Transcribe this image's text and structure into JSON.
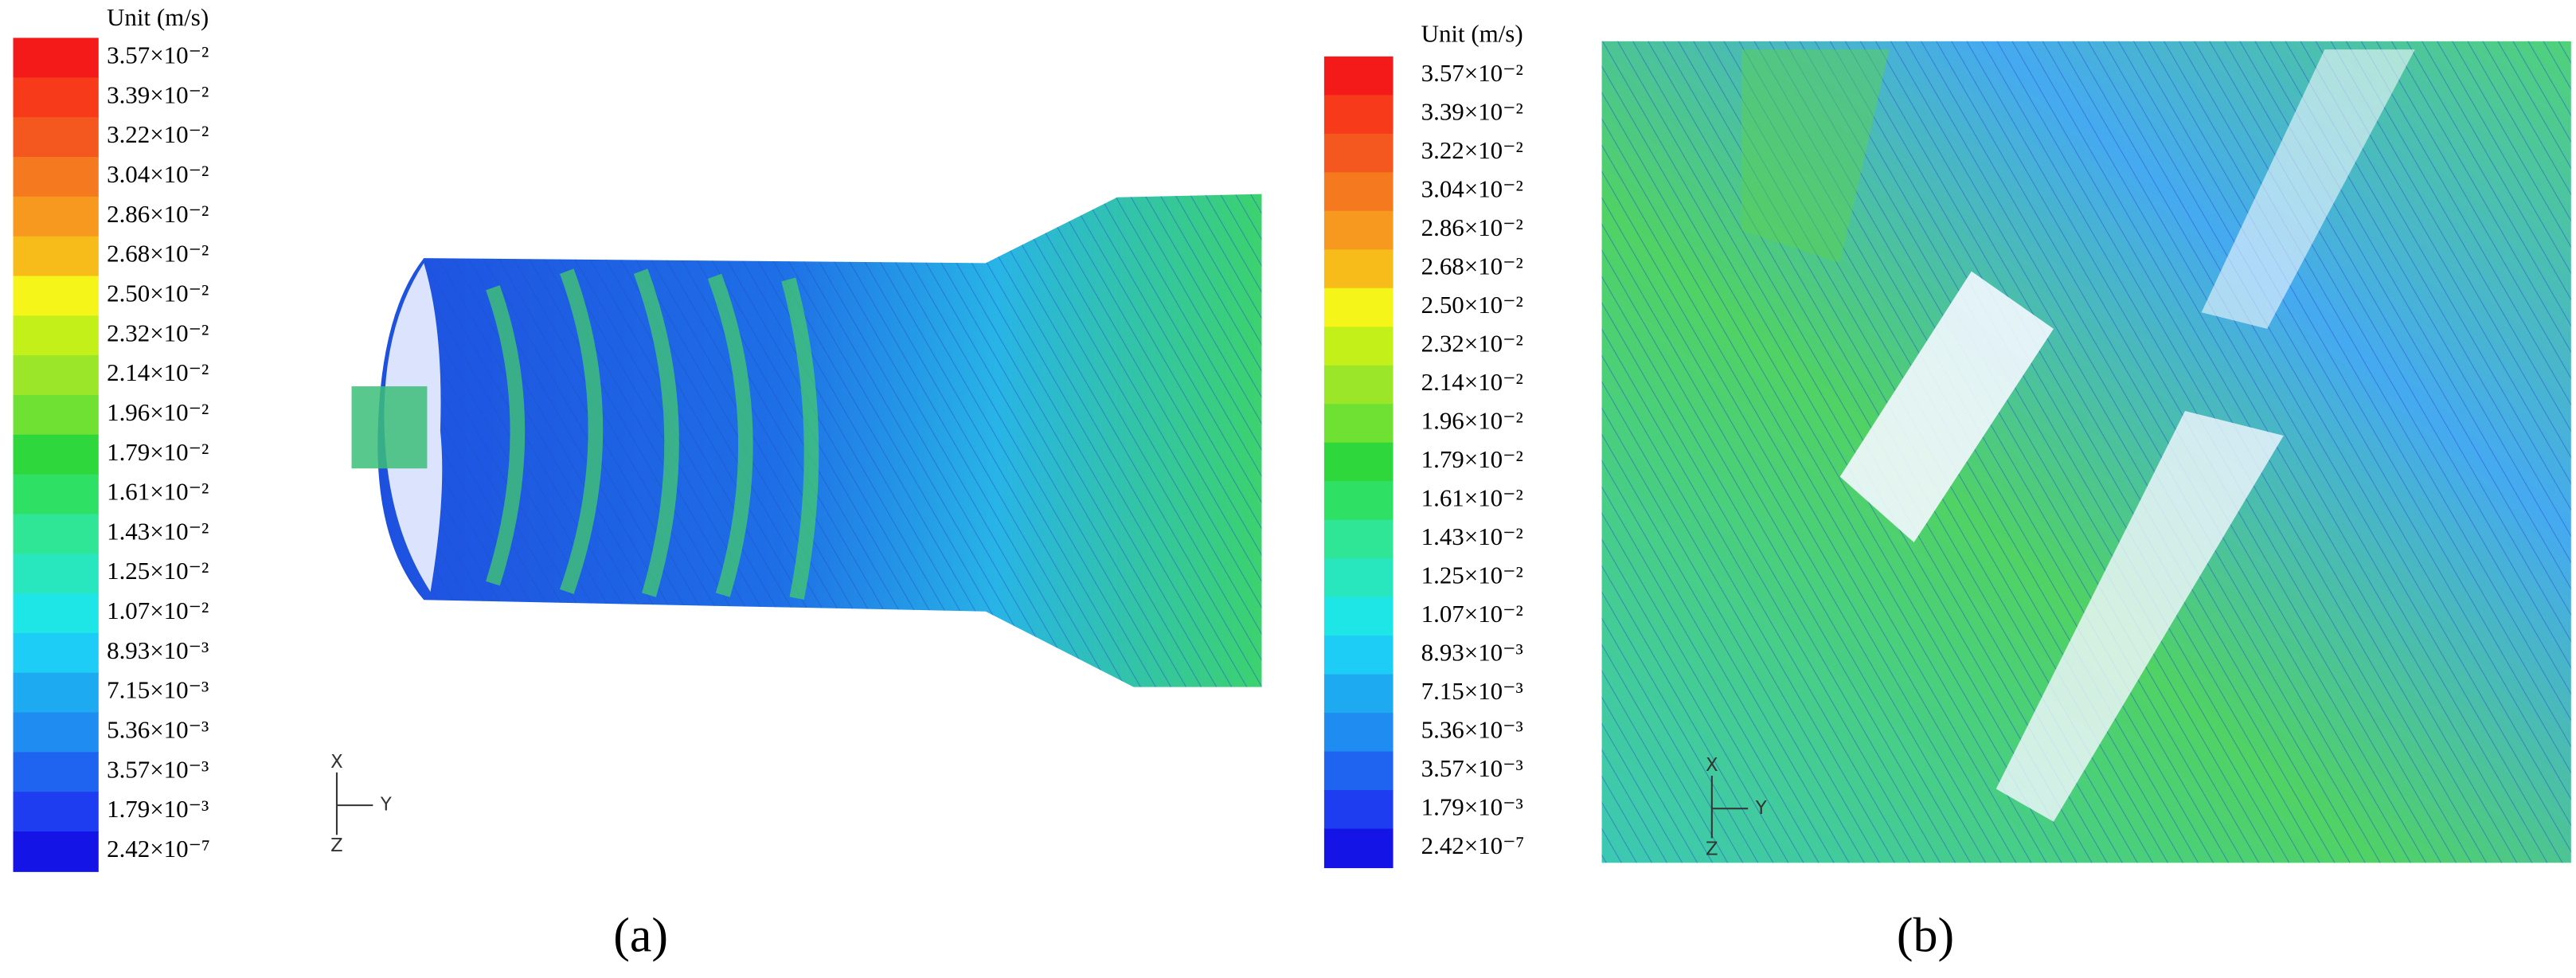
{
  "panels": [
    {
      "caption": "(a)",
      "legend": {
        "title": "Unit (m/s)",
        "labels": [
          "3.57×10⁻²",
          "3.39×10⁻²",
          "3.22×10⁻²",
          "3.04×10⁻²",
          "2.86×10⁻²",
          "2.68×10⁻²",
          "2.50×10⁻²",
          "2.32×10⁻²",
          "2.14×10⁻²",
          "1.96×10⁻²",
          "1.79×10⁻²",
          "1.61×10⁻²",
          "1.43×10⁻²",
          "1.25×10⁻²",
          "1.07×10⁻²",
          "8.93×10⁻³",
          "7.15×10⁻³",
          "5.36×10⁻³",
          "3.57×10⁻³",
          "1.79×10⁻³",
          "2.42×10⁻⁷"
        ],
        "colors": [
          "#f51a1a",
          "#f73a1a",
          "#f5581f",
          "#f57a1f",
          "#f7981f",
          "#f7bb1a",
          "#f5f51a",
          "#c4f01a",
          "#9be628",
          "#6ee132",
          "#2ed83c",
          "#2ee164",
          "#2ee696",
          "#28e6be",
          "#1ee6e6",
          "#1ecdf5",
          "#1eaaf0",
          "#1e8cf0",
          "#1e64f0",
          "#1e3cf0",
          "#1414e6"
        ]
      },
      "axes": {
        "x": "X",
        "y": "Y",
        "z": "Z"
      }
    },
    {
      "caption": "(b)",
      "legend": {
        "title": "Unit (m/s)",
        "labels": [
          "3.57×10⁻²",
          "3.39×10⁻²",
          "3.22×10⁻²",
          "3.04×10⁻²",
          "2.86×10⁻²",
          "2.68×10⁻²",
          "2.50×10⁻²",
          "2.32×10⁻²",
          "2.14×10⁻²",
          "1.96×10⁻²",
          "1.79×10⁻²",
          "1.61×10⁻²",
          "1.43×10⁻²",
          "1.25×10⁻²",
          "1.07×10⁻²",
          "8.93×10⁻³",
          "7.15×10⁻³",
          "5.36×10⁻³",
          "3.57×10⁻³",
          "1.79×10⁻³",
          "2.42×10⁻⁷"
        ],
        "colors": [
          "#f51a1a",
          "#f73a1a",
          "#f5581f",
          "#f57a1f",
          "#f7981f",
          "#f7bb1a",
          "#f5f51a",
          "#c4f01a",
          "#9be628",
          "#6ee132",
          "#2ed83c",
          "#2ee164",
          "#2ee696",
          "#28e6be",
          "#1ee6e6",
          "#1ecdf5",
          "#1eaaf0",
          "#1e8cf0",
          "#1e64f0",
          "#1e3cf0",
          "#1414e6"
        ]
      },
      "axes": {
        "x": "X",
        "y": "Y",
        "z": "Z"
      }
    }
  ]
}
